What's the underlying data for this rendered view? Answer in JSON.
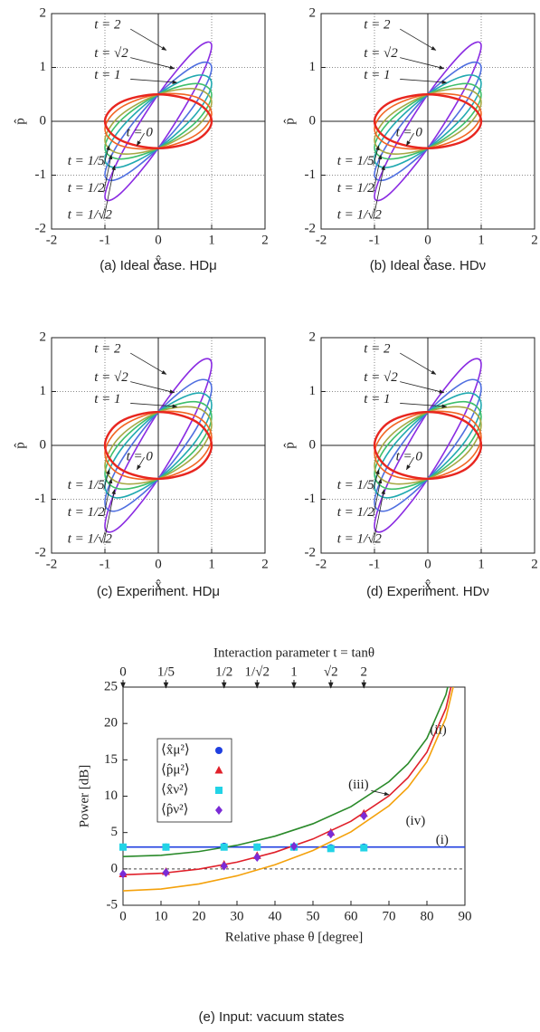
{
  "chart_data": [
    {
      "type": "ellipse",
      "caption": "(a) Ideal case. HDμ",
      "xlabel": "x̂",
      "ylabel": "p̂",
      "xlim": [
        -2,
        2
      ],
      "ylim": [
        -2,
        2
      ],
      "xticks": [
        -2,
        -1,
        0,
        1,
        2
      ],
      "yticks": [
        -2,
        -1,
        0,
        1,
        2
      ],
      "grid": true,
      "x": [
        1,
        0.71,
        0,
        -0.71,
        -1,
        -0.71,
        0,
        0.71
      ],
      "series": [
        {
          "name": "t = 0",
          "color": "#e8261f",
          "values": [
            0,
            0.35,
            0.5,
            0.35,
            0,
            -0.35,
            -0.5,
            -0.35
          ]
        },
        {
          "name": "t = 1/5",
          "color": "#f26522",
          "values": [
            0.14,
            0.45,
            0.5,
            0.25,
            -0.14,
            -0.45,
            -0.5,
            -0.25
          ]
        },
        {
          "name": "t = 1/2",
          "color": "#a6a844",
          "values": [
            0.35,
            0.6,
            0.5,
            0.11,
            -0.35,
            -0.6,
            -0.5,
            -0.11
          ]
        },
        {
          "name": "t = 1/√2",
          "color": "#3dbf6b",
          "values": [
            0.49,
            0.7,
            0.5,
            0.01,
            -0.49,
            -0.7,
            -0.5,
            -0.01
          ]
        },
        {
          "name": "t = 1",
          "color": "#20a9b0",
          "values": [
            0.7,
            0.85,
            0.5,
            -0.14,
            -0.7,
            -0.85,
            -0.5,
            0.14
          ]
        },
        {
          "name": "t = √2",
          "color": "#4f6fe0",
          "values": [
            0.99,
            1.05,
            0.5,
            -0.35,
            -0.99,
            -1.05,
            -0.5,
            0.35
          ]
        },
        {
          "name": "t = 2",
          "color": "#8a2be2",
          "values": [
            1.4,
            1.34,
            0.5,
            -0.64,
            -1.4,
            -1.34,
            -0.5,
            0.64
          ]
        }
      ]
    },
    {
      "type": "ellipse",
      "caption": "(b) Ideal case. HDν",
      "xlabel": "x̂",
      "ylabel": "p̂",
      "xlim": [
        -2,
        2
      ],
      "ylim": [
        -2,
        2
      ],
      "xticks": [
        -2,
        -1,
        0,
        1,
        2
      ],
      "yticks": [
        -2,
        -1,
        0,
        1,
        2
      ],
      "grid": true,
      "x": [
        1,
        0.71,
        0,
        -0.71,
        -1,
        -0.71,
        0,
        0.71
      ],
      "series": [
        {
          "name": "t = 0",
          "color": "#e8261f",
          "values": [
            0,
            0.35,
            0.5,
            0.35,
            0,
            -0.35,
            -0.5,
            -0.35
          ]
        },
        {
          "name": "t = 1/5",
          "color": "#f26522",
          "values": [
            0.14,
            0.45,
            0.5,
            0.25,
            -0.14,
            -0.45,
            -0.5,
            -0.25
          ]
        },
        {
          "name": "t = 1/2",
          "color": "#a6a844",
          "values": [
            0.35,
            0.6,
            0.5,
            0.11,
            -0.35,
            -0.6,
            -0.5,
            -0.11
          ]
        },
        {
          "name": "t = 1/√2",
          "color": "#3dbf6b",
          "values": [
            0.49,
            0.7,
            0.5,
            0.01,
            -0.49,
            -0.7,
            -0.5,
            -0.01
          ]
        },
        {
          "name": "t = 1",
          "color": "#20a9b0",
          "values": [
            0.7,
            0.85,
            0.5,
            -0.14,
            -0.7,
            -0.85,
            -0.5,
            0.14
          ]
        },
        {
          "name": "t = √2",
          "color": "#4f6fe0",
          "values": [
            0.99,
            1.05,
            0.5,
            -0.35,
            -0.99,
            -1.05,
            -0.5,
            0.35
          ]
        },
        {
          "name": "t = 2",
          "color": "#8a2be2",
          "values": [
            1.4,
            1.34,
            0.5,
            -0.64,
            -1.4,
            -1.34,
            -0.5,
            0.64
          ]
        }
      ]
    },
    {
      "type": "ellipse",
      "caption": "(c) Experiment. HDμ",
      "xlabel": "x̂",
      "ylabel": "p̂",
      "xlim": [
        -2,
        2
      ],
      "ylim": [
        -2,
        2
      ],
      "xticks": [
        -2,
        -1,
        0,
        1,
        2
      ],
      "yticks": [
        -2,
        -1,
        0,
        1,
        2
      ],
      "grid": true,
      "x": [
        1,
        0.71,
        0,
        -0.71,
        -1,
        -0.71,
        0,
        0.71
      ],
      "series": [
        {
          "name": "t = 0",
          "color": "#e8261f",
          "values": [
            0,
            0.44,
            0.62,
            0.44,
            0,
            -0.44,
            -0.62,
            -0.44
          ]
        },
        {
          "name": "t = 1/5",
          "color": "#f26522",
          "values": [
            0.15,
            0.54,
            0.62,
            0.33,
            -0.15,
            -0.54,
            -0.62,
            -0.33
          ]
        },
        {
          "name": "t = 1/2",
          "color": "#a6a844",
          "values": [
            0.38,
            0.7,
            0.62,
            0.17,
            -0.38,
            -0.7,
            -0.62,
            -0.17
          ]
        },
        {
          "name": "t = 1/√2",
          "color": "#3dbf6b",
          "values": [
            0.53,
            0.81,
            0.62,
            0.06,
            -0.53,
            -0.81,
            -0.62,
            -0.06
          ]
        },
        {
          "name": "t = 1",
          "color": "#20a9b0",
          "values": [
            0.75,
            0.97,
            0.62,
            -0.09,
            -0.75,
            -0.97,
            -0.62,
            0.09
          ]
        },
        {
          "name": "t = √2",
          "color": "#4f6fe0",
          "values": [
            1.06,
            1.19,
            0.62,
            -0.31,
            -1.06,
            -1.19,
            -0.62,
            0.31
          ]
        },
        {
          "name": "t = 2",
          "color": "#8a2be2",
          "values": [
            1.5,
            1.5,
            0.62,
            -0.62,
            -1.5,
            -1.5,
            -0.62,
            0.62
          ]
        }
      ]
    },
    {
      "type": "ellipse",
      "caption": "(d) Experiment. HDν",
      "xlabel": "x̂",
      "ylabel": "p̂",
      "xlim": [
        -2,
        2
      ],
      "ylim": [
        -2,
        2
      ],
      "xticks": [
        -2,
        -1,
        0,
        1,
        2
      ],
      "yticks": [
        -2,
        -1,
        0,
        1,
        2
      ],
      "grid": true,
      "x": [
        1,
        0.71,
        0,
        -0.71,
        -1,
        -0.71,
        0,
        0.71
      ],
      "series": [
        {
          "name": "t = 0",
          "color": "#e8261f",
          "values": [
            0,
            0.44,
            0.62,
            0.44,
            0,
            -0.44,
            -0.62,
            -0.44
          ]
        },
        {
          "name": "t = 1/5",
          "color": "#f26522",
          "values": [
            0.15,
            0.54,
            0.62,
            0.33,
            -0.15,
            -0.54,
            -0.62,
            -0.33
          ]
        },
        {
          "name": "t = 1/2",
          "color": "#a6a844",
          "values": [
            0.38,
            0.7,
            0.62,
            0.17,
            -0.38,
            -0.7,
            -0.62,
            -0.17
          ]
        },
        {
          "name": "t = 1/√2",
          "color": "#3dbf6b",
          "values": [
            0.53,
            0.81,
            0.62,
            0.06,
            -0.53,
            -0.81,
            -0.62,
            -0.06
          ]
        },
        {
          "name": "t = 1",
          "color": "#20a9b0",
          "values": [
            0.75,
            0.97,
            0.62,
            -0.09,
            -0.75,
            -0.97,
            -0.62,
            0.09
          ]
        },
        {
          "name": "t = √2",
          "color": "#4f6fe0",
          "values": [
            1.06,
            1.19,
            0.62,
            -0.31,
            -1.06,
            -1.19,
            -0.62,
            0.31
          ]
        },
        {
          "name": "t = 2",
          "color": "#8a2be2",
          "values": [
            1.5,
            1.5,
            0.62,
            -0.62,
            -1.5,
            -1.5,
            -0.62,
            0.62
          ]
        }
      ]
    },
    {
      "type": "line_scatter",
      "caption": "(e) Input: vacuum states",
      "x2label": "Interaction parameter t = tanθ",
      "xlabel": "Relative phase θ [degree]",
      "ylabel": "Power [dB]",
      "xlim": [
        0,
        90
      ],
      "ylim": [
        -5,
        25
      ],
      "xticks": [
        0,
        10,
        20,
        30,
        40,
        50,
        60,
        70,
        80,
        90
      ],
      "yticks": [
        -5,
        0,
        5,
        10,
        15,
        20,
        25
      ],
      "x2ticks": [
        0,
        {
          "value": 11.3,
          "label": "1/5"
        },
        {
          "value": 26.6,
          "label": "1/2"
        },
        {
          "value": 35.3,
          "label": "1/√2"
        },
        {
          "value": 45,
          "label": "1"
        },
        {
          "value": 54.7,
          "label": "√2"
        },
        {
          "value": 63.4,
          "label": "2"
        }
      ],
      "legend": "upper left",
      "series": [
        {
          "kind": "line",
          "name": "(i)",
          "color": "#1f3fe0",
          "x": [
            0,
            90
          ],
          "values": [
            3.0,
            3.0
          ]
        },
        {
          "kind": "line",
          "name": "(ii)",
          "color": "#2a8a2a",
          "x": [
            0,
            10,
            20,
            30,
            40,
            50,
            60,
            70,
            75,
            80,
            85,
            87
          ],
          "values": [
            1.7,
            1.87,
            2.39,
            3.25,
            4.5,
            6.21,
            8.56,
            11.99,
            14.46,
            17.96,
            23.97,
            28.41
          ]
        },
        {
          "kind": "line",
          "name": "(iii)",
          "color": "#e0202a",
          "x": [
            0,
            10,
            20,
            30,
            40,
            50,
            60,
            70,
            75,
            80,
            85,
            87
          ],
          "values": [
            -0.81,
            -0.61,
            -0.03,
            0.93,
            2.29,
            4.11,
            6.55,
            10.04,
            12.54,
            16.06,
            22.08,
            26.52
          ]
        },
        {
          "kind": "line",
          "name": "(iv)",
          "color": "#f4a10b",
          "x": [
            0,
            10,
            20,
            30,
            40,
            50,
            60,
            70,
            75,
            80,
            85,
            87
          ],
          "values": [
            -3.01,
            -2.77,
            -2.07,
            -0.95,
            0.57,
            2.53,
            5.09,
            8.68,
            11.2,
            14.74,
            20.77,
            25.21
          ]
        },
        {
          "kind": "scatter",
          "marker": "circle",
          "name": "⟨x̂μ²⟩",
          "color": "#1f3fe0",
          "x": [
            0,
            11.3,
            26.6,
            35.3,
            45,
            54.7,
            63.4
          ],
          "values": [
            3.0,
            3.0,
            3.1,
            3.0,
            3.0,
            2.9,
            3.0
          ]
        },
        {
          "kind": "scatter",
          "marker": "triangle",
          "name": "⟨p̂μ²⟩",
          "color": "#e0202a",
          "x": [
            0,
            11.3,
            26.6,
            35.3,
            45,
            54.7,
            63.4
          ],
          "values": [
            -0.7,
            -0.4,
            0.6,
            1.8,
            3.1,
            5.0,
            7.6
          ]
        },
        {
          "kind": "scatter",
          "marker": "square",
          "name": "⟨x̂ν²⟩",
          "color": "#22d3e6",
          "x": [
            0,
            11.3,
            26.6,
            35.3,
            45,
            54.7,
            63.4
          ],
          "values": [
            3.0,
            3.0,
            3.0,
            3.0,
            3.0,
            2.8,
            2.9
          ]
        },
        {
          "kind": "scatter",
          "marker": "diamond",
          "name": "⟨p̂ν²⟩",
          "color": "#7a2bd6",
          "x": [
            0,
            11.3,
            26.6,
            35.3,
            45,
            54.7,
            63.4
          ],
          "values": [
            -0.7,
            -0.5,
            0.4,
            1.6,
            3.1,
            4.8,
            7.3
          ]
        }
      ]
    }
  ]
}
